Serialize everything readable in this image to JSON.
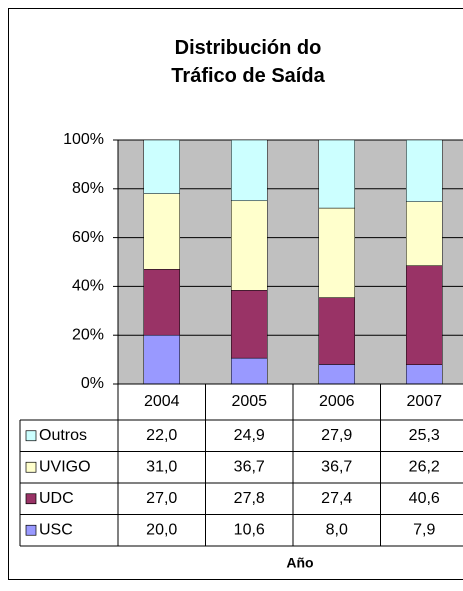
{
  "chart_data": {
    "type": "stacked_bar_percent",
    "title": "Distribución do Tráfico de Saída",
    "x_label": "Año",
    "categories": [
      "2004",
      "2005",
      "2006",
      "2007"
    ],
    "series": [
      {
        "name": "USC",
        "color": "#9999ff",
        "values": [
          20.0,
          10.6,
          8.0,
          7.9
        ],
        "value_labels": [
          "20,0",
          "10,6",
          "8,0",
          "7,9"
        ]
      },
      {
        "name": "UDC",
        "color": "#993366",
        "values": [
          27.0,
          27.8,
          27.4,
          40.6
        ],
        "value_labels": [
          "27,0",
          "27,8",
          "27,4",
          "40,6"
        ]
      },
      {
        "name": "UVIGO",
        "color": "#ffffcc",
        "values": [
          31.0,
          36.7,
          36.7,
          26.2
        ],
        "value_labels": [
          "31,0",
          "36,7",
          "36,7",
          "26,2"
        ]
      },
      {
        "name": "Outros",
        "color": "#ccffff",
        "values": [
          22.0,
          24.9,
          27.9,
          25.3
        ],
        "value_labels": [
          "22,0",
          "24,9",
          "27,9",
          "25,3"
        ]
      }
    ],
    "ylim": [
      0,
      100
    ],
    "yticks": [
      {
        "value": 0,
        "label": "0%"
      },
      {
        "value": 20,
        "label": "20%"
      },
      {
        "value": 40,
        "label": "40%"
      },
      {
        "value": 60,
        "label": "60%"
      },
      {
        "value": 80,
        "label": "80%"
      },
      {
        "value": 100,
        "label": "100%"
      }
    ],
    "grid": true,
    "plot_background": "#c0c0c0"
  }
}
